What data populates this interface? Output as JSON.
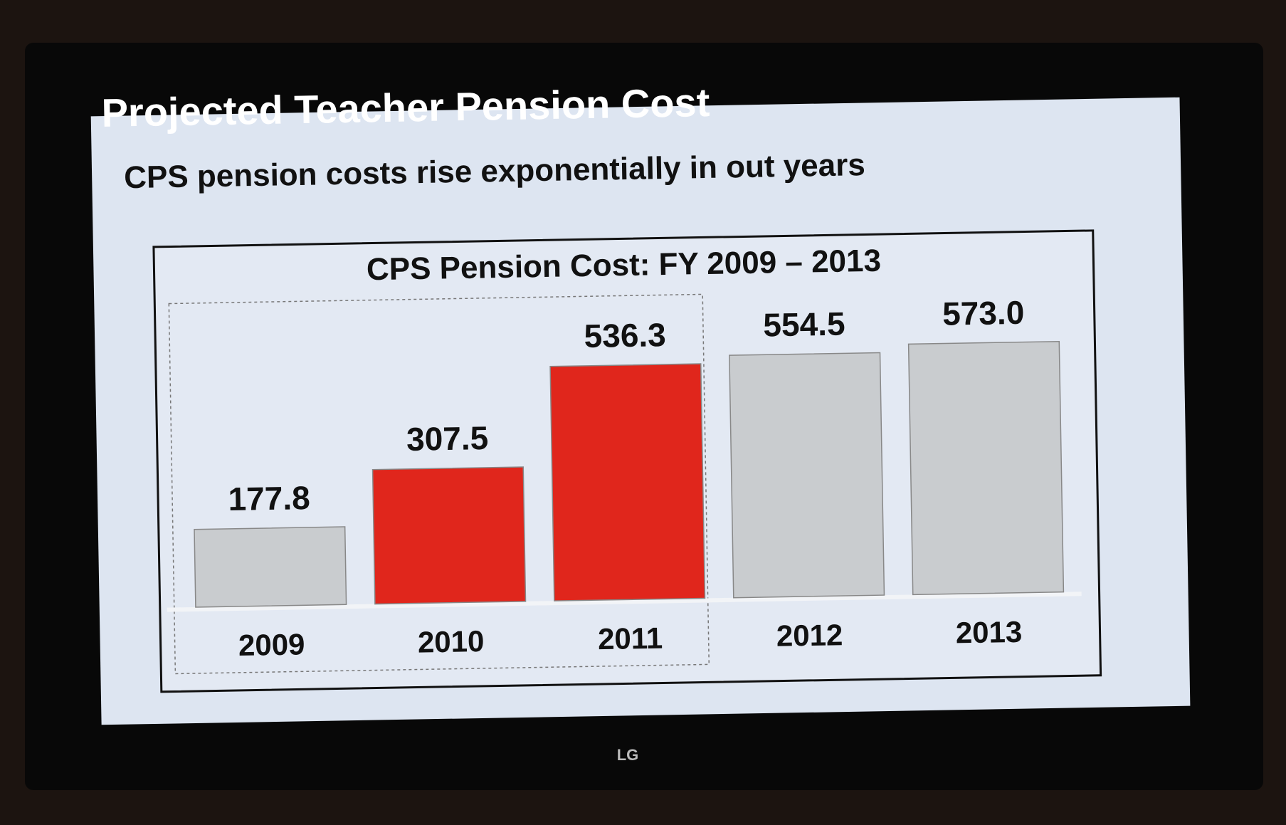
{
  "slide": {
    "title": "Projected Teacher Pension Cost",
    "subtitle": "CPS pension costs rise exponentially in out years"
  },
  "tv_brand": "LG",
  "chart_data": {
    "type": "bar",
    "title": "CPS Pension Cost: FY 2009 – 2013",
    "categories": [
      "2009",
      "2010",
      "2011",
      "2012",
      "2013"
    ],
    "values": [
      177.8,
      307.5,
      536.3,
      554.5,
      573.0
    ],
    "value_labels": [
      "177.8",
      "307.5",
      "536.3",
      "554.5",
      "573.0"
    ],
    "colors": [
      "#c9cccf",
      "#e0261c",
      "#e0261c",
      "#c9cccf",
      "#c9cccf"
    ]
  }
}
